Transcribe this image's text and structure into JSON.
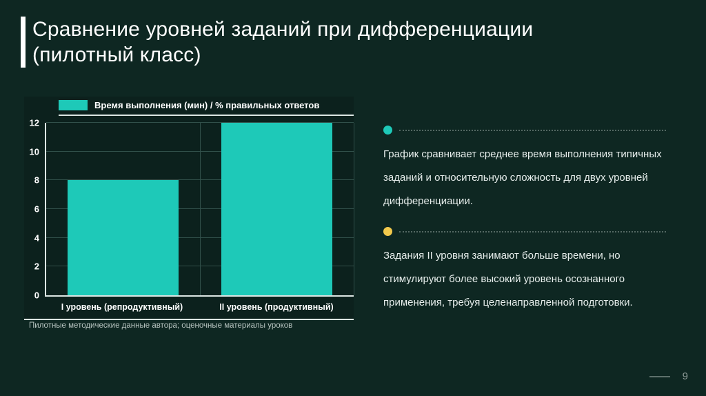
{
  "slide": {
    "title_lines": [
      "Сравнение уровней заданий при дифференциации",
      "(пилотный класс)"
    ],
    "page_number": "9",
    "background_color": "#0e2722",
    "accent_color": "#ffffff"
  },
  "chart": {
    "legend_label": "Время выполнения (мин) / % правильных ответов",
    "caption": "Пилотные методические данные автора; оценочные материалы уроков"
  },
  "chart_data": {
    "type": "bar",
    "title": "",
    "categories": [
      "I уровень (репродуктивный)",
      "II уровень (продуктивный)"
    ],
    "values": [
      8,
      12
    ],
    "ylim": [
      0,
      12
    ],
    "yticks": [
      0,
      2,
      4,
      6,
      8,
      10,
      12
    ],
    "legend": [
      "Время выполнения (мин) / % правильных ответов"
    ],
    "legend_position": "top-left",
    "grid": true,
    "bar_color": "#1ec9b8",
    "axis_color": "#dce6e3",
    "gridline_color": "#31504a"
  },
  "bullets": [
    {
      "dot_color": "#1ec9b8",
      "text": "График сравнивает среднее время выполнения типичных заданий и относительную сложность для двух уровней дифференциации."
    },
    {
      "dot_color": "#f2c94c",
      "text": "Задания II уровня занимают больше времени, но стимулируют более высокий уровень осознанного применения, требуя целенаправленной подготовки."
    }
  ]
}
